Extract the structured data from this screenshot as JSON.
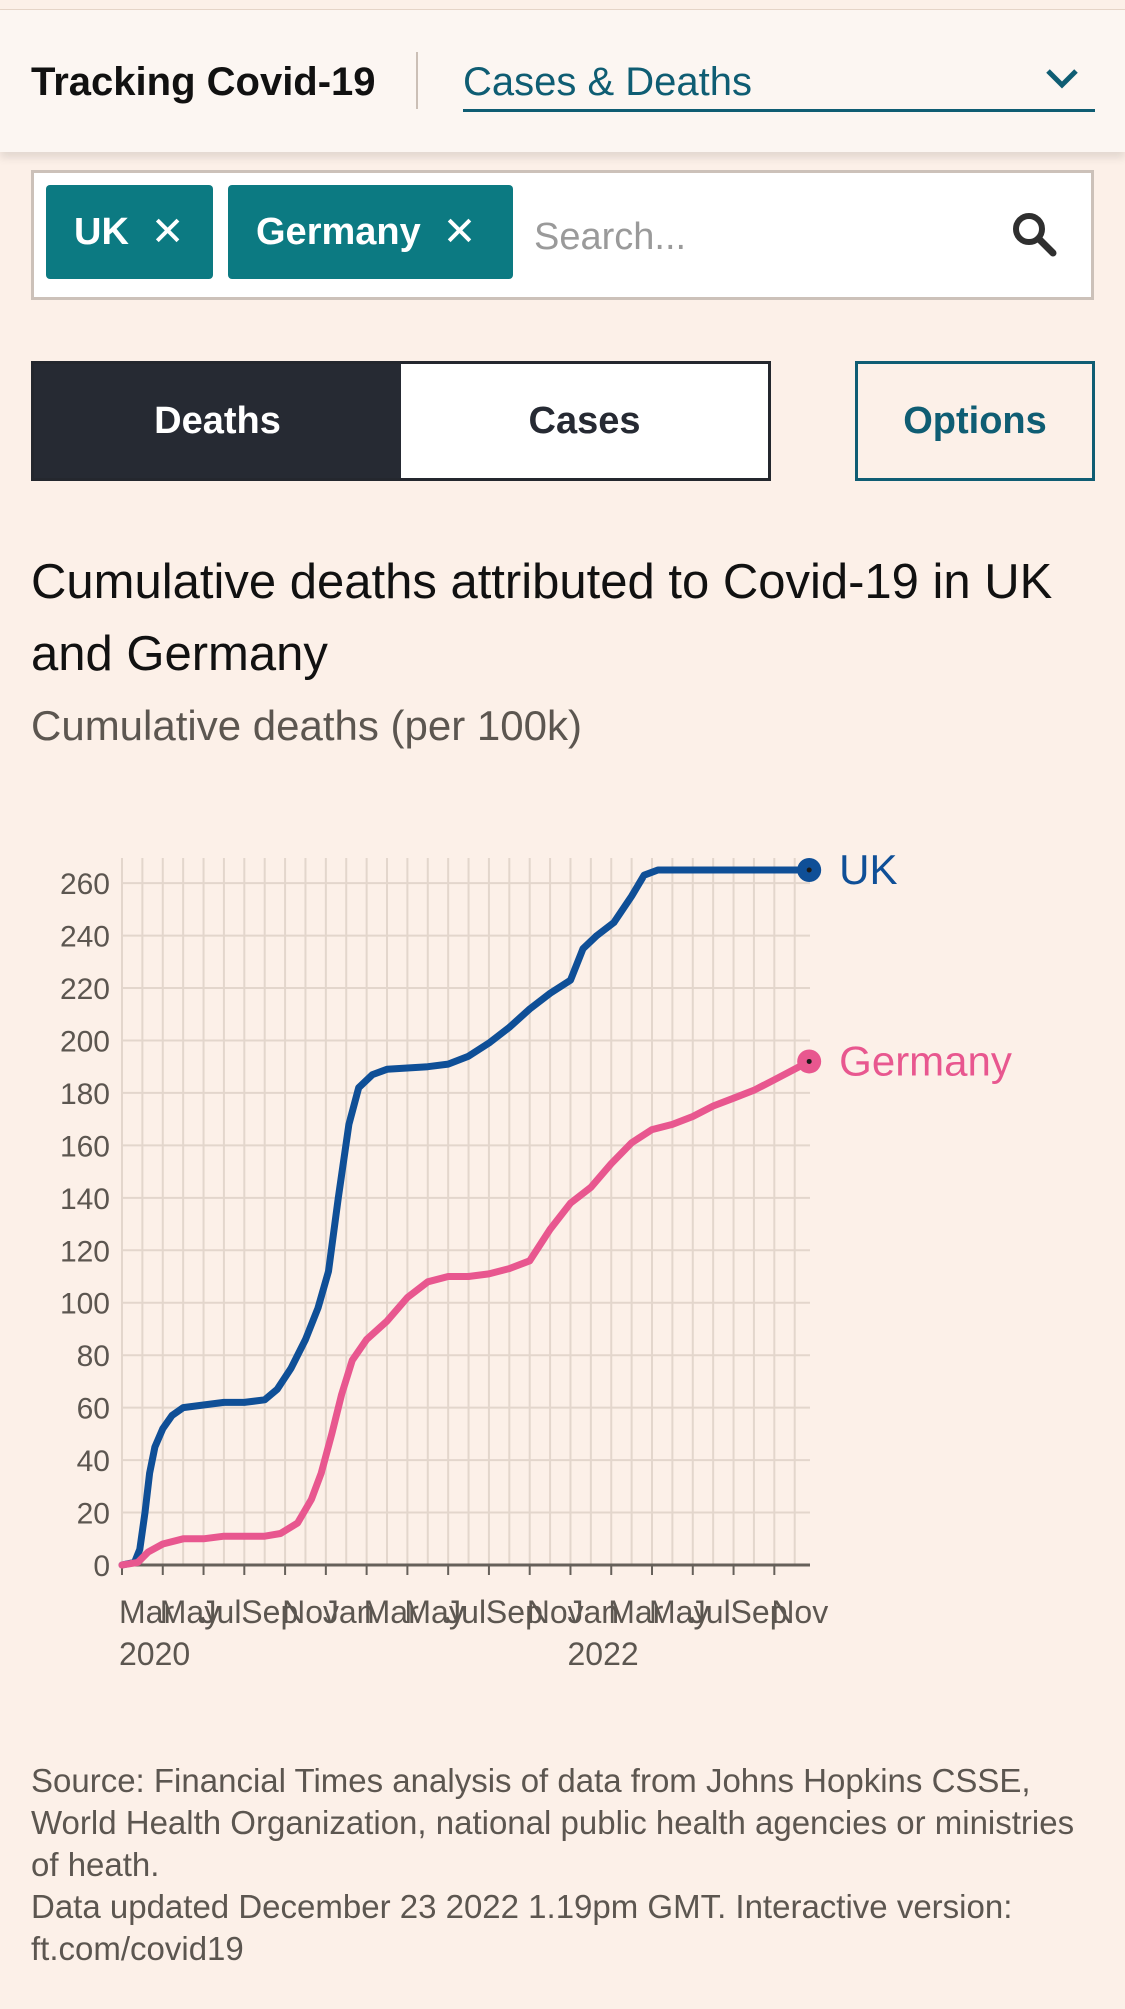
{
  "header": {
    "title": "Tracking Covid-19",
    "dropdown_value": "Cases & Deaths",
    "dropdown_icon": "chevron-down-icon"
  },
  "search": {
    "chips": [
      "UK",
      "Germany"
    ],
    "remove_glyph": "✕",
    "placeholder": "Search...",
    "icon": "search-icon"
  },
  "metric_toggle": {
    "deaths_label": "Deaths",
    "cases_label": "Cases",
    "selected": "Deaths"
  },
  "options_label": "Options",
  "chart_title": "Cumulative deaths attributed to Covid-19 in UK and Germany",
  "chart_subtitle": "Cumulative deaths (per 100k)",
  "chart_data": {
    "type": "line",
    "ylim": [
      0,
      265
    ],
    "yticks": [
      0,
      20,
      40,
      60,
      80,
      100,
      120,
      140,
      160,
      180,
      200,
      220,
      240,
      260
    ],
    "xlim": [
      "2020-03",
      "2022-12"
    ],
    "x_month_labels": [
      "Mar",
      "May",
      "Jul",
      "Sep",
      "Nov",
      "Jan",
      "Mar",
      "May",
      "Jul",
      "Sep",
      "Nov",
      "Jan",
      "Mar",
      "May",
      "Jul",
      "Sep",
      "Nov"
    ],
    "x_year_labels": [
      {
        "label": "2020",
        "at": "2020-03"
      },
      {
        "label": "2022",
        "at": "2022-01"
      }
    ],
    "grid": true,
    "series": [
      {
        "name": "UK",
        "color": "#0f4f97",
        "points": [
          [
            "2020-03-01",
            0
          ],
          [
            "2020-03-20",
            1
          ],
          [
            "2020-03-28",
            6
          ],
          [
            "2020-04-05",
            20
          ],
          [
            "2020-04-12",
            35
          ],
          [
            "2020-04-20",
            45
          ],
          [
            "2020-05-01",
            52
          ],
          [
            "2020-05-15",
            57
          ],
          [
            "2020-06-01",
            60
          ],
          [
            "2020-07-01",
            61
          ],
          [
            "2020-08-01",
            62
          ],
          [
            "2020-09-01",
            62
          ],
          [
            "2020-10-01",
            63
          ],
          [
            "2020-10-20",
            67
          ],
          [
            "2020-11-10",
            75
          ],
          [
            "2020-12-01",
            86
          ],
          [
            "2020-12-20",
            98
          ],
          [
            "2021-01-05",
            112
          ],
          [
            "2021-01-20",
            140
          ],
          [
            "2021-02-05",
            168
          ],
          [
            "2021-02-20",
            182
          ],
          [
            "2021-03-10",
            187
          ],
          [
            "2021-04-01",
            189
          ],
          [
            "2021-06-01",
            190
          ],
          [
            "2021-07-01",
            191
          ],
          [
            "2021-08-01",
            194
          ],
          [
            "2021-09-01",
            199
          ],
          [
            "2021-10-01",
            205
          ],
          [
            "2021-11-01",
            212
          ],
          [
            "2021-12-01",
            218
          ],
          [
            "2022-01-01",
            223
          ],
          [
            "2022-01-20",
            235
          ],
          [
            "2022-02-10",
            240
          ],
          [
            "2022-03-05",
            245
          ],
          [
            "2022-04-01",
            255
          ],
          [
            "2022-04-20",
            263
          ],
          [
            "2022-05-10",
            265
          ],
          [
            "2022-12-23",
            265
          ]
        ],
        "end_label": "UK"
      },
      {
        "name": "Germany",
        "color": "#e8578f",
        "points": [
          [
            "2020-03-01",
            0
          ],
          [
            "2020-03-25",
            1
          ],
          [
            "2020-04-10",
            5
          ],
          [
            "2020-05-01",
            8
          ],
          [
            "2020-06-01",
            10
          ],
          [
            "2020-07-01",
            10
          ],
          [
            "2020-08-01",
            11
          ],
          [
            "2020-09-01",
            11
          ],
          [
            "2020-10-01",
            11
          ],
          [
            "2020-10-25",
            12
          ],
          [
            "2020-11-20",
            16
          ],
          [
            "2020-12-10",
            25
          ],
          [
            "2020-12-25",
            35
          ],
          [
            "2021-01-10",
            50
          ],
          [
            "2021-01-25",
            65
          ],
          [
            "2021-02-10",
            78
          ],
          [
            "2021-03-01",
            86
          ],
          [
            "2021-04-01",
            93
          ],
          [
            "2021-05-01",
            102
          ],
          [
            "2021-06-01",
            108
          ],
          [
            "2021-07-01",
            110
          ],
          [
            "2021-08-01",
            110
          ],
          [
            "2021-09-01",
            111
          ],
          [
            "2021-10-01",
            113
          ],
          [
            "2021-11-01",
            116
          ],
          [
            "2021-12-01",
            128
          ],
          [
            "2022-01-01",
            138
          ],
          [
            "2022-02-01",
            144
          ],
          [
            "2022-03-01",
            153
          ],
          [
            "2022-04-01",
            161
          ],
          [
            "2022-05-01",
            166
          ],
          [
            "2022-06-01",
            168
          ],
          [
            "2022-07-01",
            171
          ],
          [
            "2022-08-01",
            175
          ],
          [
            "2022-09-01",
            178
          ],
          [
            "2022-10-01",
            181
          ],
          [
            "2022-11-01",
            185
          ],
          [
            "2022-12-23",
            192
          ]
        ],
        "end_label": "Germany"
      }
    ]
  },
  "source_text": "Source: Financial Times analysis of data from Johns Hopkins CSSE, World Health Organization, national public health agencies or ministries of heath.",
  "updated_text": "Data updated December 23 2022 1.19pm GMT. Interactive version: ft.com/covid19"
}
